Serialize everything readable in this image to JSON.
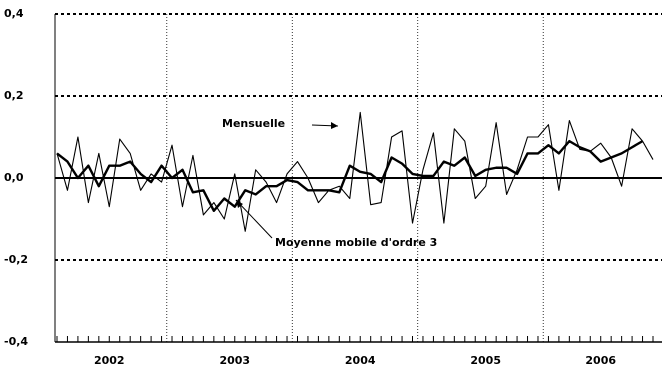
{
  "chart_data": {
    "type": "line",
    "categories": [
      null,
      null,
      null,
      null,
      null,
      "2002",
      null,
      null,
      null,
      null,
      null,
      null,
      null,
      null,
      null,
      null,
      null,
      "2003",
      null,
      null,
      null,
      null,
      null,
      null,
      null,
      null,
      null,
      null,
      null,
      "2004",
      null,
      null,
      null,
      null,
      null,
      null,
      null,
      null,
      null,
      null,
      null,
      "2005",
      null,
      null,
      null,
      null,
      null,
      null,
      null,
      null,
      null,
      null,
      "2006",
      null,
      null,
      null,
      null,
      null
    ],
    "series": [
      {
        "name": "Mensuelle",
        "color": "#000000",
        "values": [
          0.06,
          -0.03,
          0.1,
          -0.06,
          0.06,
          -0.07,
          0.095,
          0.06,
          -0.03,
          0.01,
          -0.01,
          0.08,
          -0.07,
          0.055,
          -0.09,
          -0.06,
          -0.1,
          0.01,
          -0.13,
          0.02,
          -0.01,
          -0.06,
          0.01,
          0.04,
          0.0,
          -0.06,
          -0.03,
          -0.02,
          -0.05,
          0.16,
          -0.065,
          -0.06,
          0.1,
          0.115,
          -0.11,
          0.02,
          0.11,
          -0.11,
          0.12,
          0.09,
          -0.05,
          -0.02,
          0.135,
          -0.04,
          0.02,
          0.1,
          0.1,
          0.13,
          -0.03,
          0.14,
          0.07,
          0.065,
          0.085,
          0.05,
          -0.02,
          0.12,
          0.09,
          0.045
        ]
      },
      {
        "name": "Moyenne mobile d'ordre 3",
        "color": "#000000",
        "values": [
          0.06,
          0.04,
          0.0,
          0.03,
          -0.02,
          0.03,
          0.03,
          0.04,
          0.01,
          -0.01,
          0.03,
          0.0,
          0.02,
          -0.035,
          -0.03,
          -0.08,
          -0.05,
          -0.07,
          -0.03,
          -0.04,
          -0.02,
          -0.02,
          -0.005,
          -0.01,
          -0.03,
          -0.03,
          -0.03,
          -0.035,
          0.03,
          0.015,
          0.01,
          -0.01,
          0.05,
          0.035,
          0.01,
          0.005,
          0.005,
          0.04,
          0.03,
          0.05,
          0.005,
          0.02,
          0.025,
          0.025,
          0.01,
          0.06,
          0.06,
          0.08,
          0.06,
          0.09,
          0.075,
          0.065,
          0.04,
          0.05,
          0.06,
          0.075,
          0.09,
          null
        ]
      }
    ],
    "ylim": [
      -0.4,
      0.4
    ],
    "yticks": [
      {
        "value": -0.4,
        "label": "-0,4"
      },
      {
        "value": -0.2,
        "label": "-0,2"
      },
      {
        "value": 0,
        "label": "0,0"
      },
      {
        "value": 0.2,
        "label": "0,2"
      },
      {
        "value": 0.4,
        "label": "0,4"
      }
    ],
    "grid": true
  }
}
